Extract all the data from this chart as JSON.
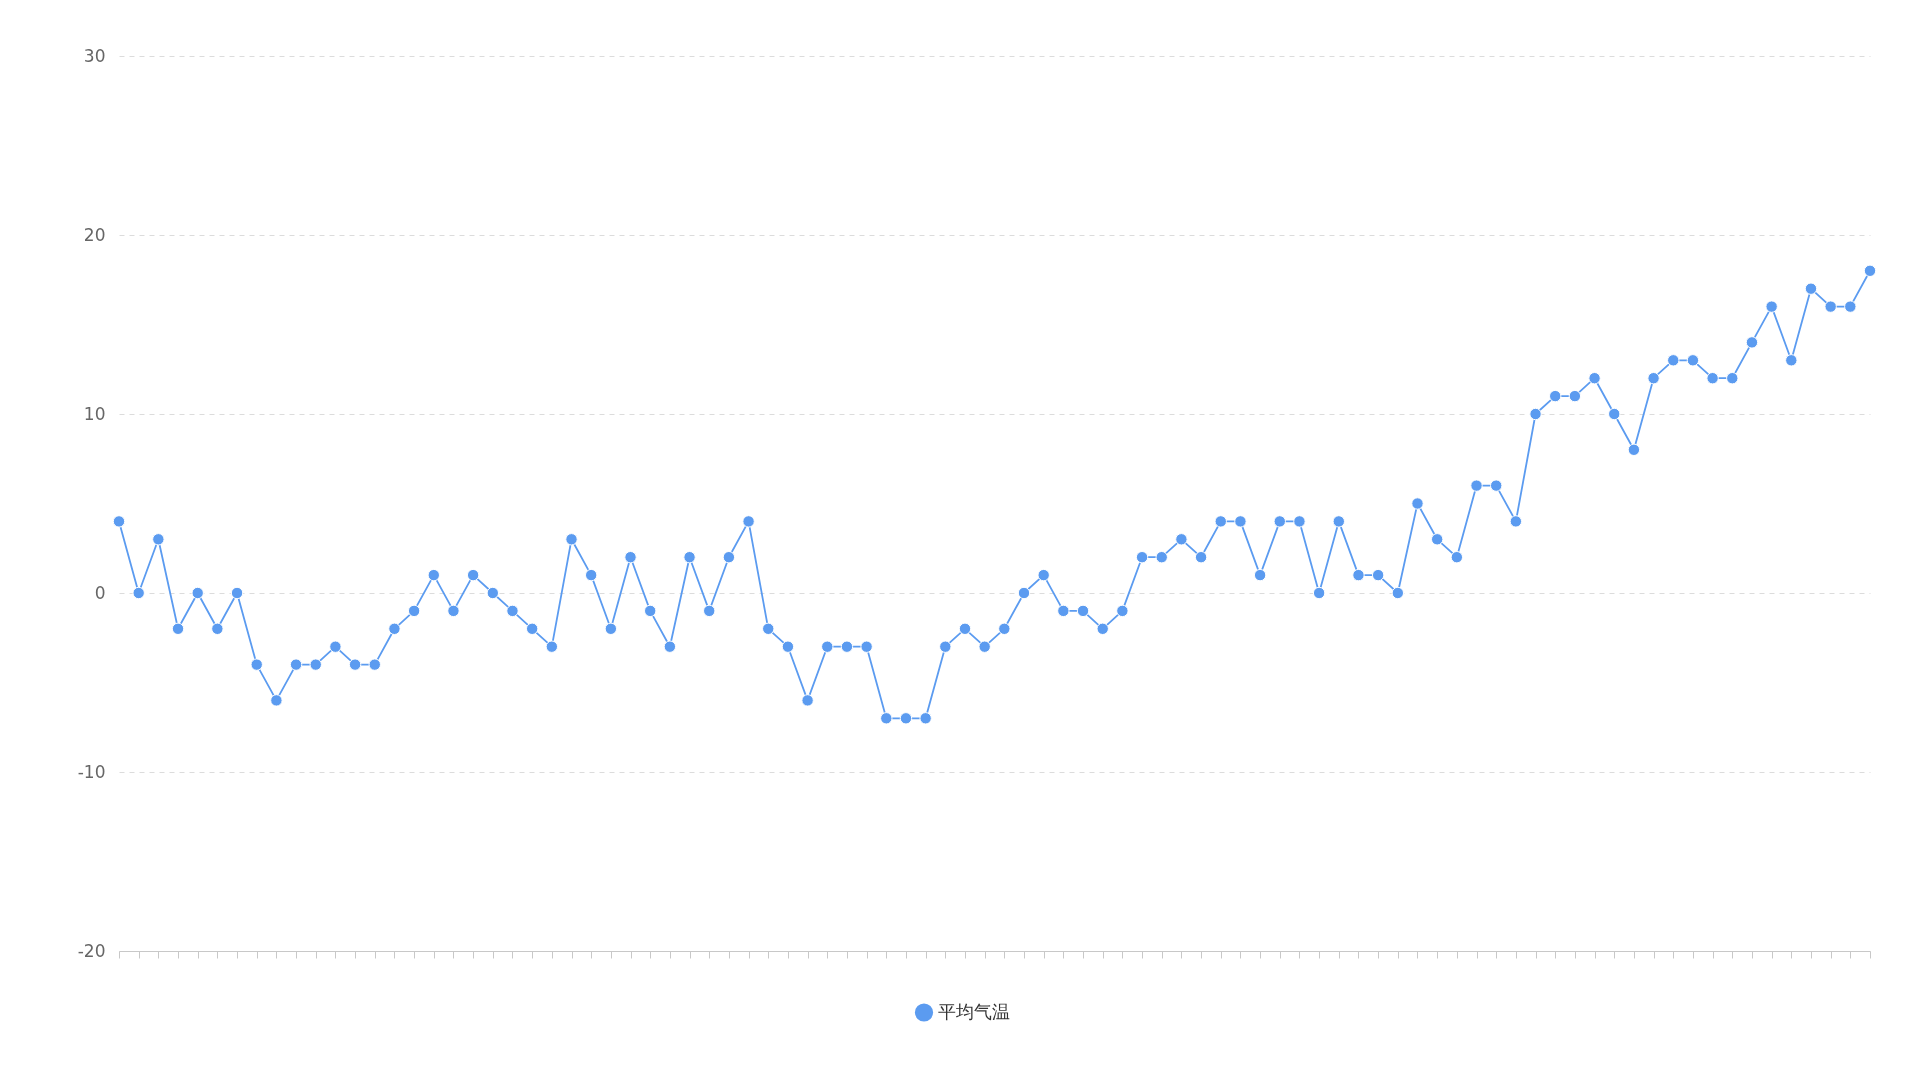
{
  "chart_data": {
    "type": "line",
    "categories": [
      null,
      null,
      null,
      null,
      null,
      null,
      null,
      null,
      null,
      null,
      null,
      null,
      null,
      null,
      null,
      null,
      null,
      null,
      null,
      null,
      null,
      null,
      null,
      null,
      null,
      null,
      null,
      null,
      null,
      null,
      null,
      null,
      null,
      null,
      null,
      null,
      null,
      null,
      null,
      null,
      null,
      null,
      null,
      null,
      null,
      null,
      null,
      null,
      null,
      null,
      null,
      null,
      null,
      null,
      null,
      null,
      null,
      null,
      null,
      null,
      null,
      null,
      null,
      null,
      null,
      null,
      null,
      null,
      null,
      null,
      null,
      null,
      null,
      null,
      null,
      null,
      null,
      null,
      null,
      null,
      null,
      null,
      null,
      null,
      null,
      null,
      null,
      null,
      null,
      null
    ],
    "series": [
      {
        "name": "平均气温",
        "color": "#5b9bf0",
        "values": [
          4,
          0,
          3,
          -2,
          0,
          -2,
          0,
          -4,
          -6,
          -4,
          -4,
          -3,
          -4,
          -4,
          -2,
          -1,
          1,
          -1,
          1,
          0,
          -1,
          -2,
          -3,
          3,
          1,
          -2,
          2,
          -1,
          -3,
          2,
          -1,
          2,
          4,
          -2,
          -3,
          -6,
          -3,
          -3,
          -3,
          -7,
          -7,
          -7,
          -3,
          -2,
          -3,
          -2,
          0,
          1,
          -1,
          -1,
          -2,
          -1,
          2,
          2,
          3,
          2,
          4,
          4,
          1,
          4,
          4,
          0,
          4,
          1,
          1,
          0,
          5,
          3,
          2,
          6,
          6,
          4,
          10,
          11,
          11,
          12,
          10,
          8,
          12,
          13,
          13,
          12,
          12,
          14,
          16,
          13,
          17,
          16,
          16,
          18
        ]
      }
    ],
    "ylim": [
      -20,
      30
    ],
    "yticks": [
      -20,
      -10,
      0,
      10,
      20,
      30
    ],
    "grid": "y",
    "legend": "bottom",
    "tick_labels": "y",
    "marker": "circle",
    "line_style": "solid"
  }
}
